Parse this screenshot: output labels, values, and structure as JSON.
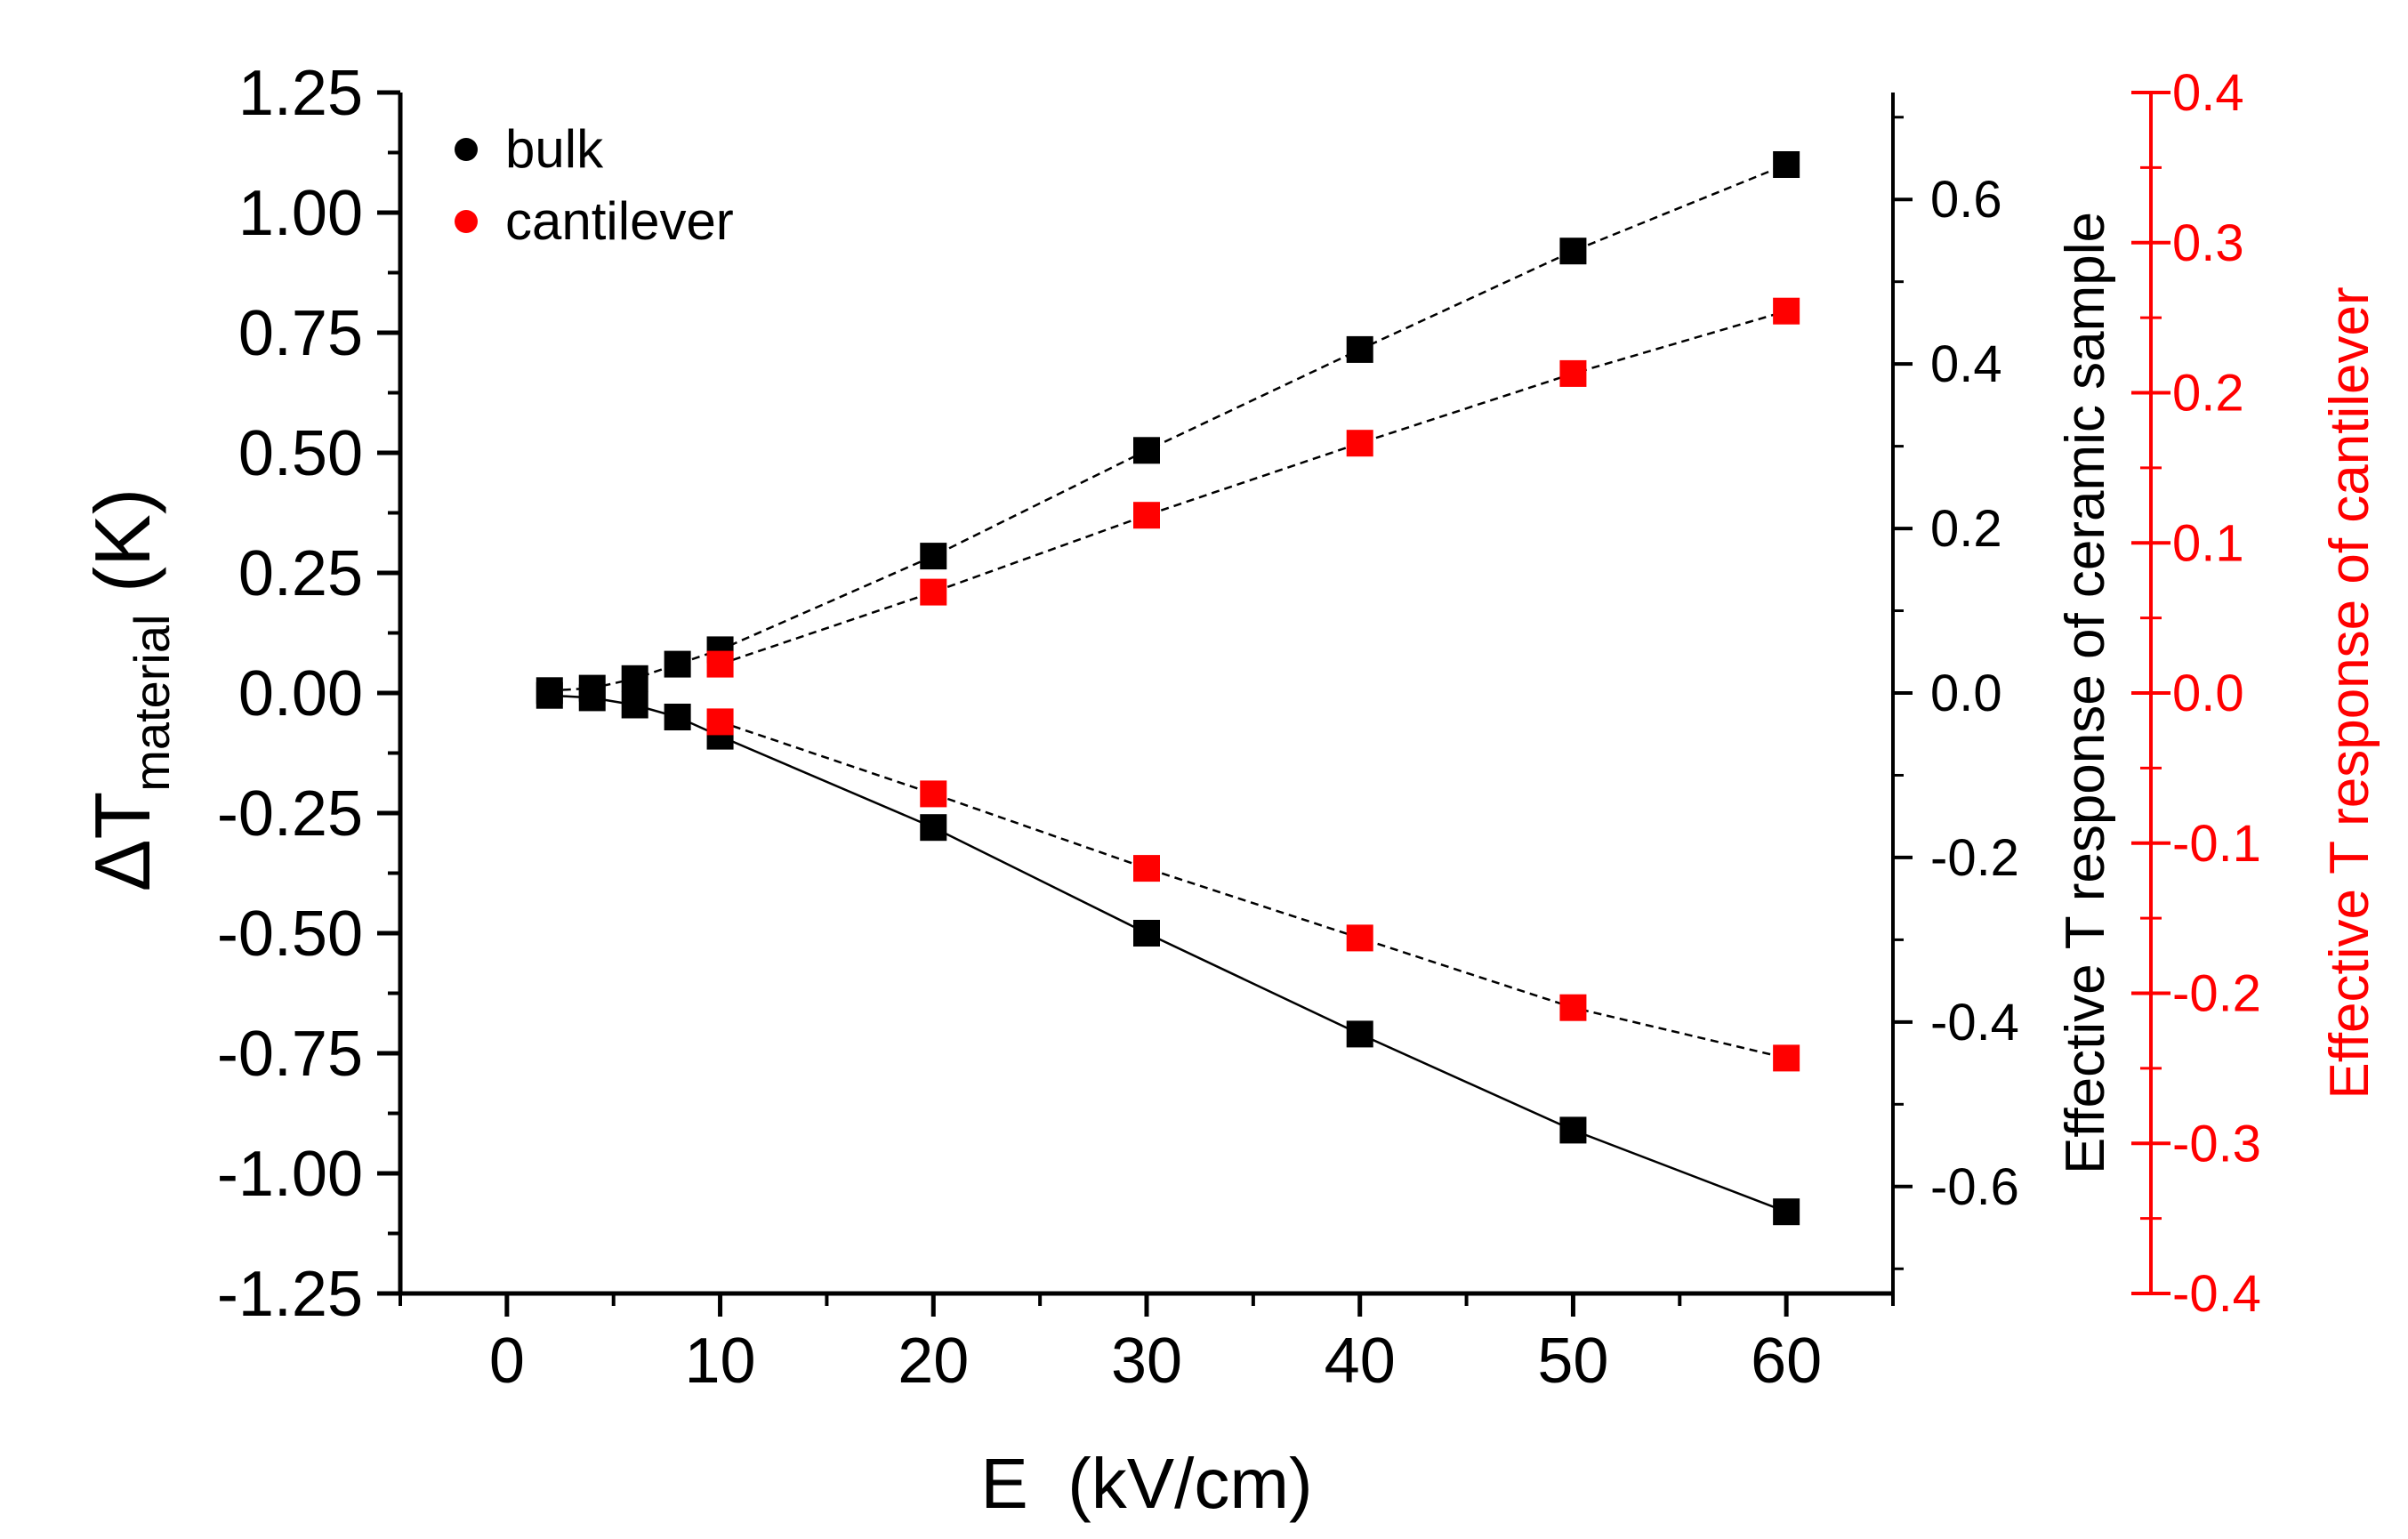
{
  "chart_data": {
    "type": "scatter",
    "xlabel": "E  (kV/cm)",
    "ylabel_main": "ΔT",
    "ylabel_sub": "material",
    "ylabel_unit": " (K)",
    "y2label": "Effective T response of ceramic sample",
    "y3label": "Effective T response of cantilever",
    "xlim": [
      -5,
      65
    ],
    "ylim": [
      -1.25,
      1.25
    ],
    "y2lim": [
      -0.73,
      0.73
    ],
    "y3lim": [
      -0.4,
      0.4
    ],
    "x_ticks": [
      "0",
      "10",
      "20",
      "30",
      "40",
      "50",
      "60"
    ],
    "y_ticks": [
      "1.25",
      "1.00",
      "0.75",
      "0.50",
      "0.25",
      "0.00",
      "-0.25",
      "-0.50",
      "-0.75",
      "-1.00",
      "-1.25"
    ],
    "y2_ticks": [
      "0.6",
      "0.4",
      "0.2",
      "0.0",
      "-0.2",
      "-0.4",
      "-0.6"
    ],
    "y3_ticks": [
      "0.4",
      "0.3",
      "0.2",
      "0.1",
      "0.0",
      "-0.1",
      "-0.2",
      "-0.3",
      "-0.4"
    ],
    "legend": {
      "position": "top-left",
      "entries": [
        {
          "label": "bulk",
          "color": "#000000"
        },
        {
          "label": "cantilever",
          "color": "#ff0000"
        }
      ]
    },
    "grid": false,
    "series": [
      {
        "name": "bulk",
        "color": "#000000",
        "line": "dashed",
        "x": [
          2,
          4,
          6,
          8,
          10,
          20,
          30,
          40,
          50,
          60
        ],
        "y": [
          0.005,
          0.01,
          0.03,
          0.06,
          0.09,
          0.285,
          0.505,
          0.715,
          0.92,
          1.1
        ]
      },
      {
        "name": "bulk",
        "color": "#000000",
        "line": "solid",
        "x": [
          2,
          4,
          6,
          8,
          10,
          20,
          30,
          40,
          50,
          60
        ],
        "y": [
          -0.005,
          -0.01,
          -0.025,
          -0.05,
          -0.09,
          -0.28,
          -0.5,
          -0.71,
          -0.91,
          -1.08
        ]
      },
      {
        "name": "cantilever",
        "color": "#ff0000",
        "line": "dashed",
        "x": [
          10,
          20,
          30,
          40,
          50,
          60
        ],
        "y": [
          0.06,
          0.21,
          0.37,
          0.52,
          0.665,
          0.795
        ]
      },
      {
        "name": "cantilever",
        "color": "#ff0000",
        "line": "dashed",
        "x": [
          10,
          20,
          30,
          40,
          50,
          60
        ],
        "y": [
          -0.06,
          -0.21,
          -0.365,
          -0.51,
          -0.655,
          -0.76
        ]
      }
    ]
  }
}
